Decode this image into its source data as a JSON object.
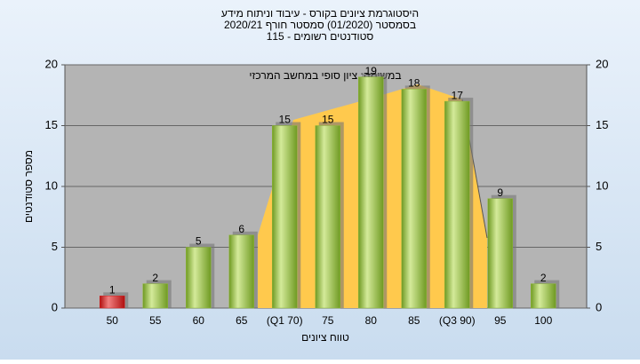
{
  "chart_data": {
    "type": "bar",
    "title": "היסטוגרמת ציונים בקורס - עיבוד וניתוח מידע",
    "subtitle": "בסמסטר (01/2020) סמסטר חורף 2020/21",
    "subtitle2": "סטודנטים רשומים - 115",
    "annotation": "במשימה: ציון סופי במחשב המרכזי",
    "x_label": "טווח ציונים",
    "y_label": "מספר סטודנטים",
    "categories": [
      "50",
      "55",
      "60",
      "65",
      "(Q1 70)",
      "75",
      "80",
      "85",
      "(Q3 90)",
      "95",
      "100"
    ],
    "values": [
      1,
      2,
      5,
      6,
      15,
      15,
      19,
      18,
      17,
      9,
      2
    ],
    "colors": [
      "#d42020",
      "#8fb83a",
      "#8fb83a",
      "#8fb83a",
      "#8fb83a",
      "#8fb83a",
      "#8fb83a",
      "#8fb83a",
      "#8fb83a",
      "#8fb83a",
      "#8fb83a"
    ],
    "ylim": [
      0,
      20
    ],
    "yticks": [
      0,
      5,
      10,
      15,
      20
    ],
    "y2lim": [
      0,
      20
    ],
    "y2ticks": [
      0,
      5,
      10,
      15,
      20
    ],
    "grid": true
  }
}
